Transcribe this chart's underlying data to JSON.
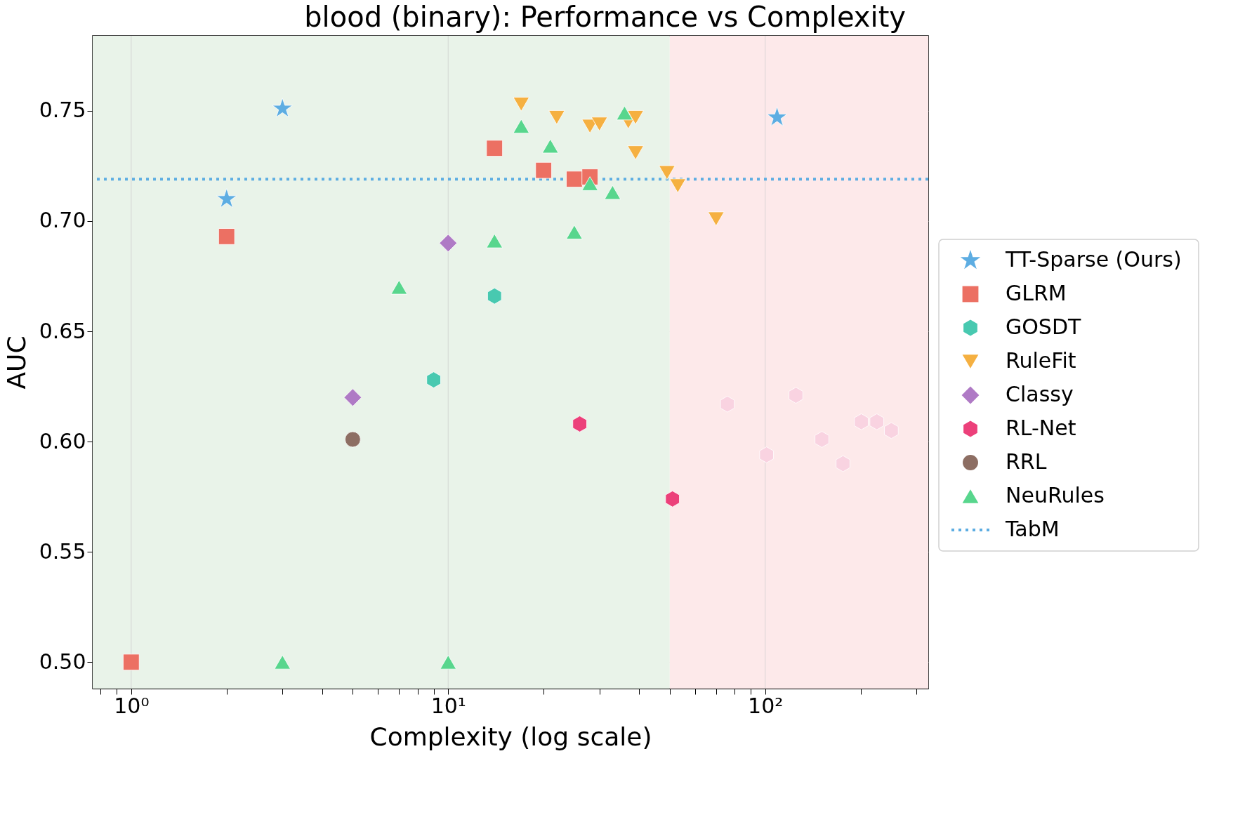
{
  "chart_data": {
    "type": "scatter",
    "title": "blood (binary): Performance vs Complexity",
    "xlabel": "Complexity (log scale)",
    "ylabel": "AUC",
    "log": "x",
    "grid": true,
    "legend": "right",
    "xlim": [
      0.756,
      327
    ],
    "ylim": [
      0.488,
      0.784
    ],
    "xticks": [
      {
        "value": 0.8,
        "label": null
      },
      {
        "value": 0.9,
        "label": null
      },
      {
        "value": 1,
        "label": "10⁰"
      },
      {
        "value": 2,
        "label": null
      },
      {
        "value": 3,
        "label": null
      },
      {
        "value": 4,
        "label": null
      },
      {
        "value": 5,
        "label": null
      },
      {
        "value": 6,
        "label": null
      },
      {
        "value": 7,
        "label": null
      },
      {
        "value": 8,
        "label": null
      },
      {
        "value": 9,
        "label": null
      },
      {
        "value": 10,
        "label": "10¹"
      },
      {
        "value": 20,
        "label": null
      },
      {
        "value": 30,
        "label": null
      },
      {
        "value": 40,
        "label": null
      },
      {
        "value": 50,
        "label": null
      },
      {
        "value": 60,
        "label": null
      },
      {
        "value": 70,
        "label": null
      },
      {
        "value": 80,
        "label": null
      },
      {
        "value": 90,
        "label": null
      },
      {
        "value": 100,
        "label": "10²"
      },
      {
        "value": 200,
        "label": null
      },
      {
        "value": 300,
        "label": null
      }
    ],
    "yticks": [
      {
        "value": 0.5,
        "label": "0.50"
      },
      0.55,
      {
        "value": 0.6,
        "label": "0.60"
      },
      0.65,
      {
        "value": 0.7,
        "label": "0.70"
      },
      0.75
    ],
    "bands": [
      {
        "axis": "x",
        "from": 0.756,
        "to": 50,
        "color": "#e9f3e9"
      },
      {
        "axis": "x",
        "from": 50,
        "to": 327,
        "color": "#fde9ea"
      }
    ],
    "ref_lines": [
      {
        "axis": "y",
        "value": 0.719,
        "label": "TabM",
        "color": "#5dade2",
        "line_style": "dotted"
      }
    ],
    "series": [
      {
        "name": "TT-Sparse (Ours)",
        "color": "#5dade2",
        "marker": "star",
        "x": [
          2,
          3,
          109
        ],
        "values": [
          0.71,
          0.751,
          0.747
        ]
      },
      {
        "name": "GLRM",
        "color": "#ec7063",
        "marker": "square",
        "x": [
          1,
          2,
          14,
          20,
          25,
          28
        ],
        "values": [
          0.5,
          0.693,
          0.733,
          0.723,
          0.719,
          0.72
        ]
      },
      {
        "name": "GOSDT",
        "color": "#48c9b0",
        "x": [
          9,
          14
        ],
        "values": [
          0.628,
          0.666
        ]
      },
      {
        "name": "RuleFit",
        "color": "#f5b041",
        "marker": "triangle_down",
        "x": [
          17,
          22,
          28,
          30,
          37,
          39,
          39,
          49,
          53,
          70
        ],
        "values": [
          0.753,
          0.747,
          0.743,
          0.744,
          0.745,
          0.747,
          0.731,
          0.722,
          0.716,
          0.701
        ]
      },
      {
        "name": "Classy",
        "color": "#af7ac5",
        "marker": "diamond",
        "x": [
          5,
          10
        ],
        "values": [
          0.62,
          0.69
        ]
      },
      {
        "name": "RL-Net",
        "color": "#ec407a",
        "x": [
          26,
          51
        ],
        "values": [
          0.608,
          0.574
        ]
      },
      {
        "name": "RRL",
        "color": "#8d6e63",
        "marker": "circle",
        "x": [
          5
        ],
        "values": [
          0.601
        ]
      },
      {
        "name": "NeuRules",
        "color": "#58d68d",
        "marker": "triangle",
        "x": [
          3,
          7,
          10,
          14,
          17,
          21,
          25,
          28,
          33,
          36
        ],
        "values": [
          0.5,
          0.67,
          0.5,
          0.691,
          0.743,
          0.734,
          0.695,
          0.717,
          0.713,
          0.749
        ]
      },
      {
        "color": "#f9d3e1",
        "x": [
          76,
          101,
          125,
          151,
          176,
          201,
          225,
          250
        ],
        "values": [
          0.617,
          0.594,
          0.621,
          0.601,
          0.59,
          0.609,
          0.609,
          0.605
        ]
      }
    ]
  }
}
